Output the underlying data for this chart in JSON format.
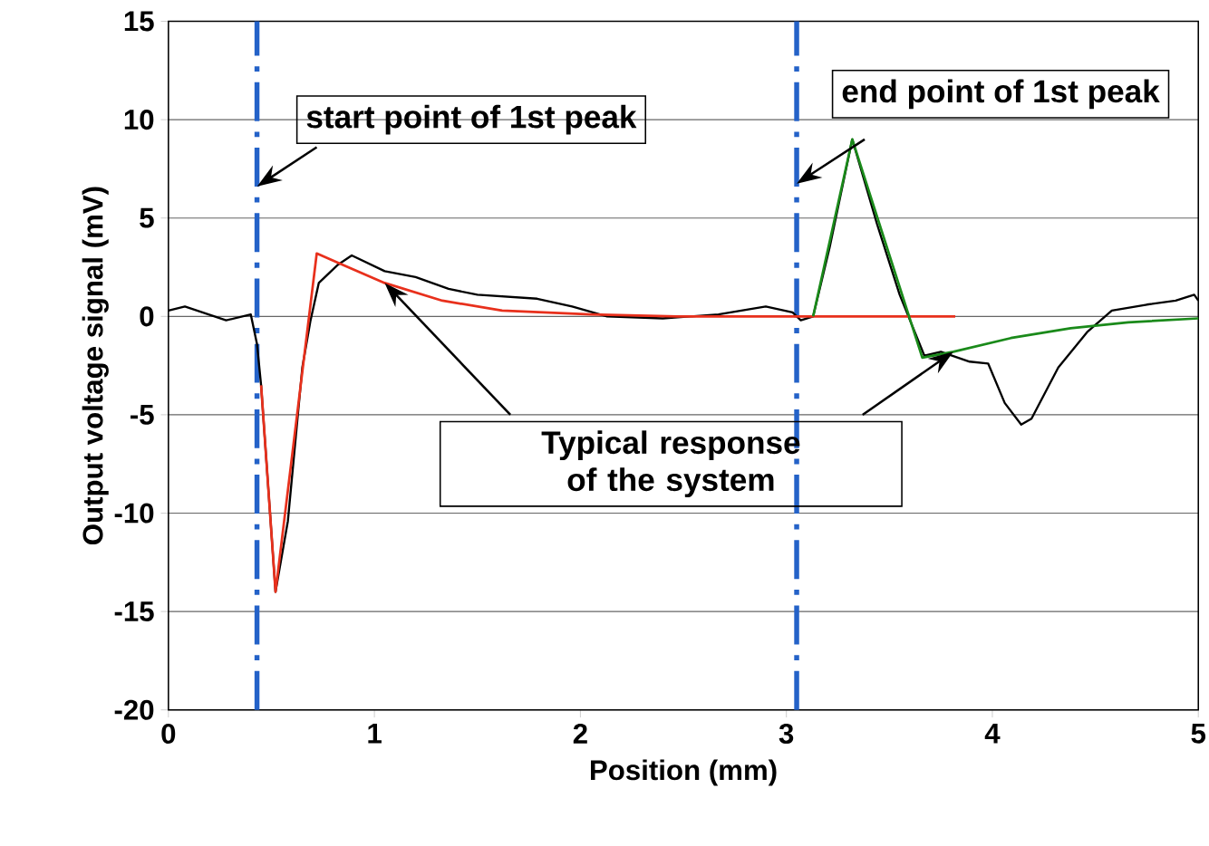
{
  "chart_data": {
    "type": "line",
    "xlabel": "Position (mm)",
    "ylabel": "Output voltage signal (mV)",
    "xlim": [
      0,
      5
    ],
    "ylim": [
      -20,
      15
    ],
    "xticks": [
      0,
      1,
      2,
      3,
      4,
      5
    ],
    "yticks": [
      -20,
      -15,
      -10,
      -5,
      0,
      5,
      10,
      15
    ],
    "grid": "y",
    "line_style": "solid",
    "series": [
      {
        "color": "#000000",
        "x": [
          0,
          0.08,
          0.28,
          0.4,
          0.43,
          0.45,
          0.48,
          0.52,
          0.58,
          0.65,
          0.69,
          0.73,
          0.82,
          0.89,
          1.05,
          1.2,
          1.36,
          1.5,
          1.79,
          1.96,
          2.13,
          2.4,
          2.67,
          2.9,
          3.03,
          3.07,
          3.13,
          3.21,
          3.32,
          3.44,
          3.55,
          3.67,
          3.75,
          3.89,
          3.98,
          4.06,
          4.14,
          4.19,
          4.32,
          4.46,
          4.58,
          4.75,
          4.89,
          4.98,
          5.0
        ],
        "values": [
          0.3,
          0.5,
          -0.2,
          0.1,
          -1.4,
          -3.5,
          -8,
          -14.0,
          -10.4,
          -2.6,
          -0.2,
          1.7,
          2.6,
          3.1,
          2.3,
          2.0,
          1.4,
          1.1,
          0.9,
          0.5,
          0,
          -0.1,
          0.1,
          0.5,
          0.2,
          -0.2,
          0,
          3.5,
          9.0,
          4.7,
          1.1,
          -2.0,
          -1.8,
          -2.3,
          -2.4,
          -4.4,
          -5.5,
          -5.2,
          -2.6,
          -0.8,
          0.3,
          0.6,
          0.8,
          1.1,
          0.8
        ]
      },
      {
        "color": "#e8301c",
        "x": [
          0.45,
          0.52,
          0.72,
          0.85,
          1.05,
          1.33,
          1.62,
          2.05,
          2.47,
          3.82
        ],
        "values": [
          -3.5,
          -14.0,
          3.2,
          2.6,
          1.7,
          0.8,
          0.3,
          0.1,
          0,
          0
        ]
      },
      {
        "color": "#1a8a1a",
        "x": [
          3.13,
          3.32,
          3.66,
          3.81,
          4.09,
          4.38,
          4.66,
          5.0
        ],
        "values": [
          0,
          9.0,
          -2.1,
          -1.8,
          -1.1,
          -0.6,
          -0.3,
          -0.1
        ]
      }
    ],
    "ref_lines": [
      {
        "axis": "x",
        "value": 0.43,
        "color": "#2462c8",
        "line_style": "dashdot"
      },
      {
        "axis": "x",
        "value": 3.05,
        "color": "#2462c8",
        "line_style": "dashdot"
      }
    ],
    "annotations": [
      "start point of 1st peak",
      "end point of 1st peak",
      {
        "text": "Typical response of the system",
        "x": 1.05,
        "y": 1.7
      }
    ]
  }
}
